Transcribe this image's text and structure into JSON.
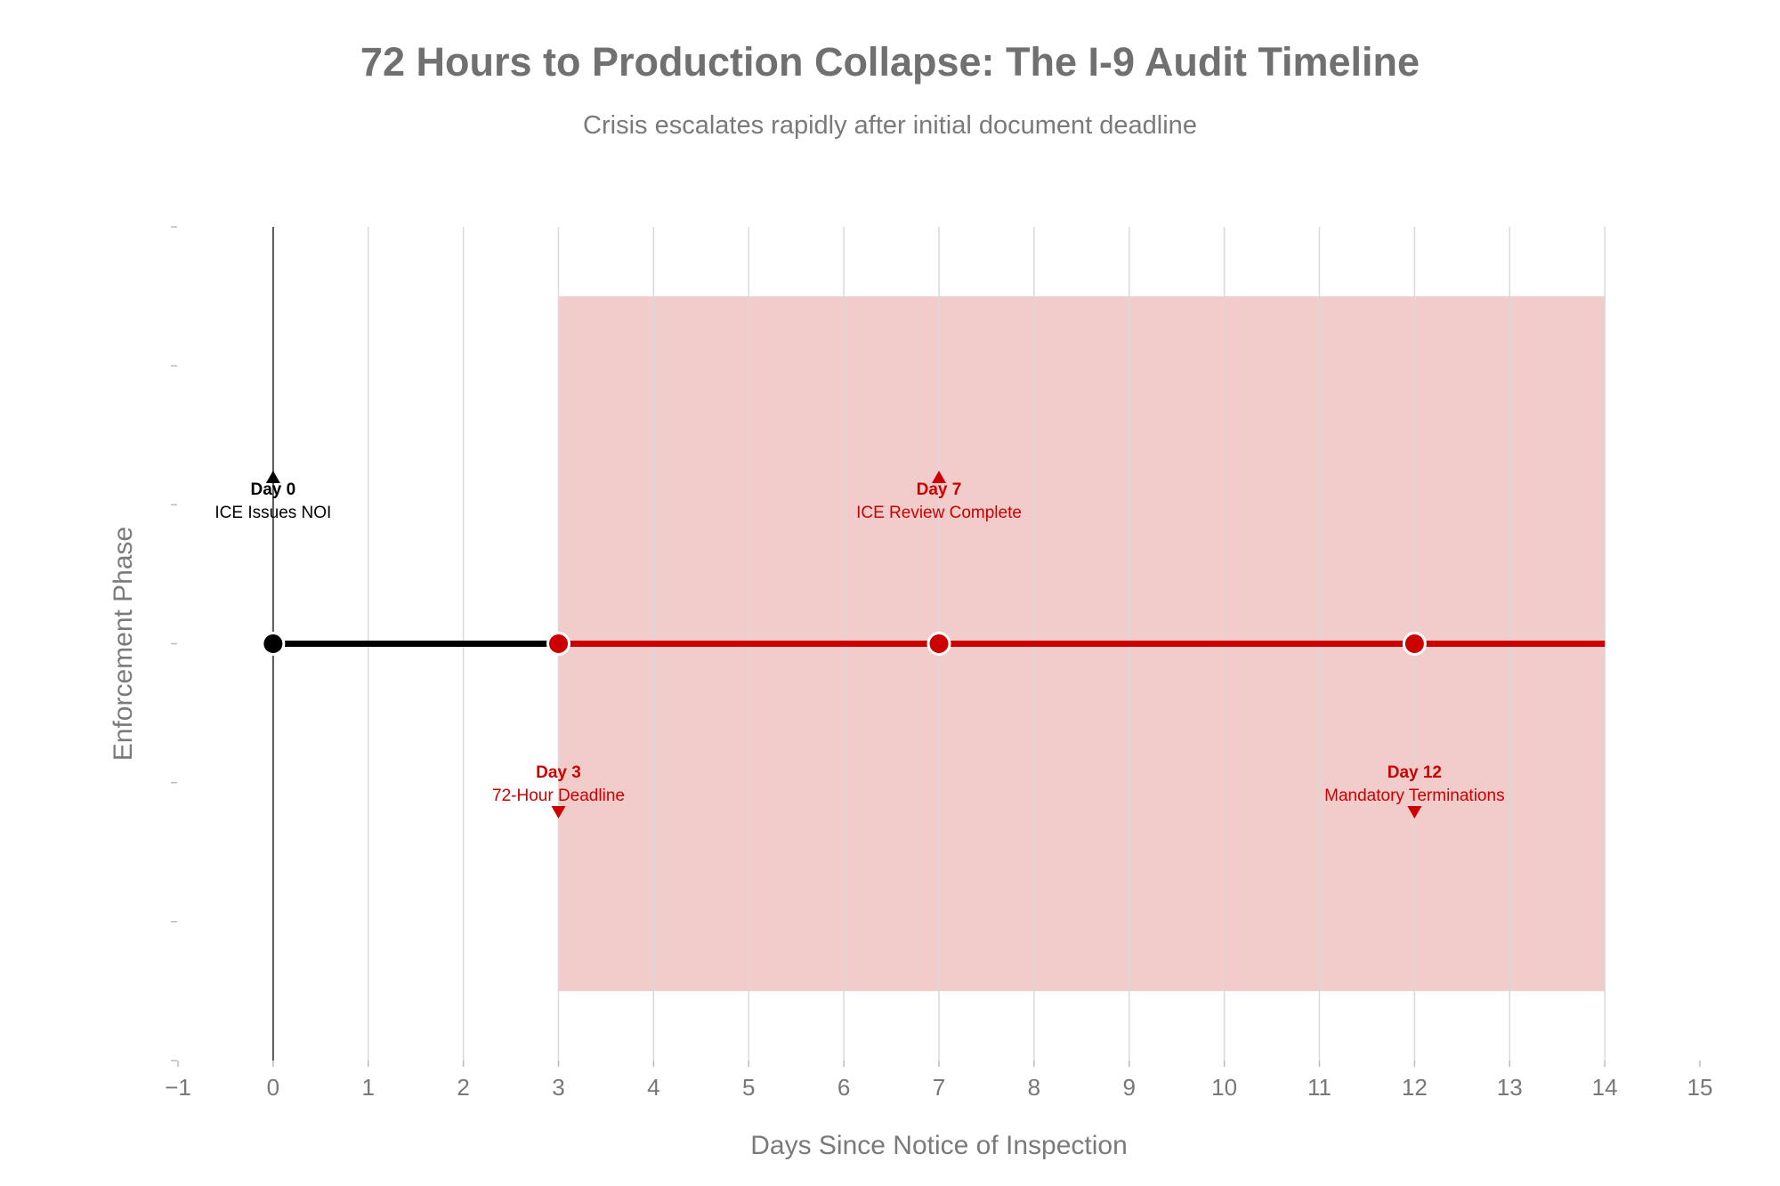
{
  "chart_data": {
    "type": "line",
    "title": "72 Hours to Production Collapse: The I-9 Audit Timeline",
    "subtitle": "Crisis escalates rapidly after initial document deadline",
    "xlabel": "Days Since Notice of Inspection",
    "ylabel": "Enforcement Phase",
    "xlim": [
      -1,
      15
    ],
    "x_ticks": [
      -1,
      0,
      1,
      2,
      3,
      4,
      5,
      6,
      7,
      8,
      9,
      10,
      11,
      12,
      13,
      14,
      15
    ],
    "x_tick_labels": [
      "−1",
      "0",
      "1",
      "2",
      "3",
      "4",
      "5",
      "6",
      "7",
      "8",
      "9",
      "10",
      "11",
      "12",
      "13",
      "14",
      "15"
    ],
    "ylim": [
      -3,
      3
    ],
    "y_ticks": [
      -3,
      -2,
      -1,
      0,
      1,
      2,
      3
    ],
    "grid": true,
    "crisis_region": {
      "x_start": 3,
      "x_end": 14,
      "y_start": -2.5,
      "y_end": 2.5,
      "color": "#f2cbcb"
    },
    "timeline": [
      {
        "x_start": 0,
        "x_end": 3,
        "y": 0,
        "color": "#000000"
      },
      {
        "x_start": 3,
        "x_end": 14,
        "y": 0,
        "color": "#cc0000"
      }
    ],
    "events": [
      {
        "x": 0,
        "y": 0,
        "title": "Day 0",
        "label": "ICE Issues NOI",
        "color": "#000000",
        "position": "above"
      },
      {
        "x": 3,
        "y": 0,
        "title": "Day 3",
        "label": "72-Hour Deadline",
        "color": "#cc0000",
        "position": "below"
      },
      {
        "x": 7,
        "y": 0,
        "title": "Day 7",
        "label": "ICE Review Complete",
        "color": "#cc0000",
        "position": "above"
      },
      {
        "x": 12,
        "y": 0,
        "title": "Day 12",
        "label": "Mandatory Terminations",
        "color": "#cc0000",
        "position": "below"
      }
    ],
    "reference_line": {
      "x": 0,
      "color": "#555555"
    }
  }
}
